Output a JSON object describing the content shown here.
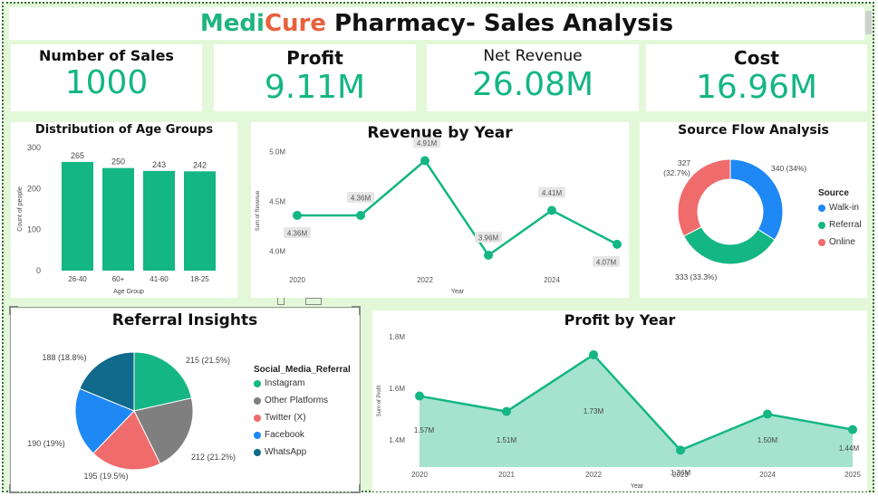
{
  "title": {
    "part1": "Medi",
    "part2": "Cure",
    "part3": " Pharmacy- Sales Analysis"
  },
  "kpis": [
    {
      "label": "Number of Sales",
      "value": "1000"
    },
    {
      "label": "Profit",
      "value": "9.11M"
    },
    {
      "label": "Net Revenue",
      "value": "26.08M"
    },
    {
      "label": "Cost",
      "value": "16.96M"
    }
  ],
  "colors": {
    "green": "#14b683",
    "gray": "#7f7f7f",
    "salmon": "#f06b6b",
    "blue": "#1e88f5",
    "teal": "#0f6a8c",
    "area": "#a0e2cc"
  },
  "chart_data": [
    {
      "type": "bar",
      "title": "Distribution of Age Groups",
      "xlabel": "Age Group",
      "ylabel": "Count of people",
      "categories": [
        "26-40",
        "60+",
        "41-60",
        "18-25"
      ],
      "values": [
        265,
        250,
        243,
        242
      ],
      "ylim": [
        0,
        300
      ],
      "yticks": [
        0,
        100,
        200,
        300
      ]
    },
    {
      "type": "line",
      "title": "Revenue by Year",
      "xlabel": "Year",
      "ylabel": "Sum of Revenue",
      "x": [
        2020,
        2021,
        2022,
        2023,
        2024,
        2025
      ],
      "values": [
        4.36,
        4.36,
        4.91,
        3.96,
        4.41,
        4.07
      ],
      "labels": [
        "4.36M",
        "4.36M",
        "4.91M",
        "3.96M",
        "4.41M",
        "4.07M"
      ],
      "xticks": [
        "2020",
        "2022",
        "2024"
      ],
      "yticks": [
        "4.0M",
        "4.5M",
        "5.0M"
      ],
      "ylim": [
        3.8,
        5.0
      ]
    },
    {
      "type": "pie",
      "title": "Source Flow Analysis",
      "legend_title": "Source",
      "categories": [
        "Walk-in",
        "Referral",
        "Online"
      ],
      "values": [
        340,
        333,
        327
      ],
      "labels": [
        "340 (34%)",
        "333 (33.3%)",
        "327 (32.7%)"
      ]
    },
    {
      "type": "pie",
      "title": "Referral Insights",
      "legend_title": "Social_Media_Referral",
      "categories": [
        "Instagram",
        "Other Platforms",
        "Twitter (X)",
        "Facebook",
        "WhatsApp"
      ],
      "values": [
        215,
        212,
        195,
        190,
        188
      ],
      "labels": [
        "215 (21.5%)",
        "212 (21.2%)",
        "195 (19.5%)",
        "190 (19%)",
        "188 (18.8%)"
      ]
    },
    {
      "type": "area",
      "title": "Profit by Year",
      "xlabel": "Year",
      "ylabel": "Sum of Profit",
      "x": [
        2020,
        2021,
        2022,
        2023,
        2024,
        2025
      ],
      "values": [
        1.57,
        1.51,
        1.73,
        1.36,
        1.5,
        1.44
      ],
      "labels": [
        "1.57M",
        "1.51M",
        "1.73M",
        "1.36M",
        "1.50M",
        "1.44M"
      ],
      "xticks": [
        "2020",
        "2021",
        "2022",
        "2023",
        "2024",
        "2025"
      ],
      "yticks": [
        "1.4M",
        "1.6M",
        "1.8M"
      ],
      "ylim": [
        1.3,
        1.8
      ]
    }
  ]
}
